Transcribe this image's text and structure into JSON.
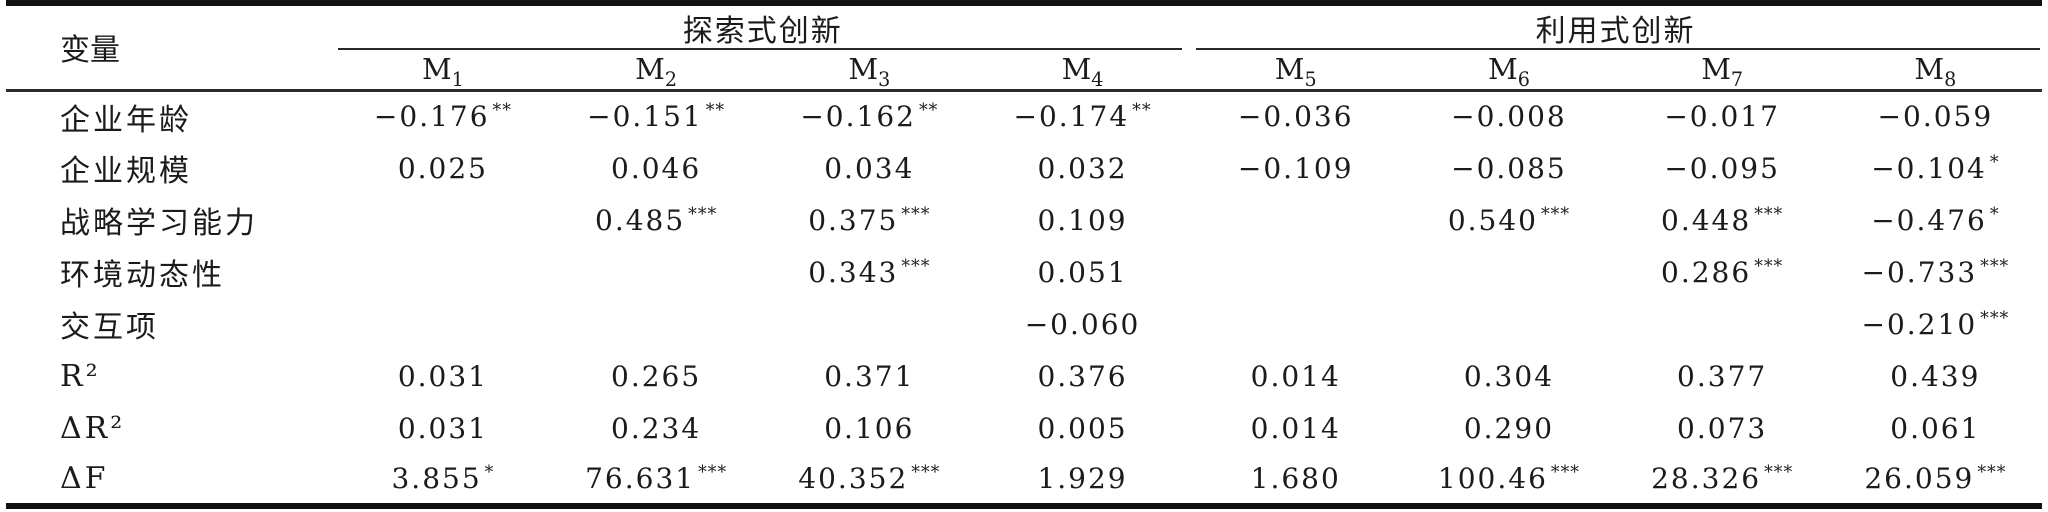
{
  "table": {
    "variable_header": "变量",
    "groups": [
      {
        "label": "探索式创新",
        "span": 4
      },
      {
        "label": "利用式创新",
        "span": 4
      }
    ],
    "models": [
      {
        "base": "M",
        "sub": "1"
      },
      {
        "base": "M",
        "sub": "2"
      },
      {
        "base": "M",
        "sub": "3"
      },
      {
        "base": "M",
        "sub": "4"
      },
      {
        "base": "M",
        "sub": "5"
      },
      {
        "base": "M",
        "sub": "6"
      },
      {
        "base": "M",
        "sub": "7"
      },
      {
        "base": "M",
        "sub": "8"
      }
    ],
    "rows": [
      {
        "label": "企业年龄",
        "cells": [
          "−0.176**",
          "−0.151**",
          "−0.162**",
          "−0.174**",
          "−0.036",
          "−0.008",
          "−0.017",
          "−0.059"
        ]
      },
      {
        "label": "企业规模",
        "cells": [
          "0.025",
          "0.046",
          "0.034",
          "0.032",
          "−0.109",
          "−0.085",
          "−0.095",
          "−0.104*"
        ]
      },
      {
        "label": "战略学习能力",
        "cells": [
          "",
          "0.485***",
          "0.375***",
          "0.109",
          "",
          "0.540***",
          "0.448***",
          "−0.476*"
        ]
      },
      {
        "label": "环境动态性",
        "cells": [
          "",
          "",
          "0.343***",
          "0.051",
          "",
          "",
          "0.286***",
          "−0.733***"
        ]
      },
      {
        "label": "交互项",
        "cells": [
          "",
          "",
          "",
          "−0.060",
          "",
          "",
          "",
          "−0.210***"
        ]
      },
      {
        "label": "R²",
        "cells": [
          "0.031",
          "0.265",
          "0.371",
          "0.376",
          "0.014",
          "0.304",
          "0.377",
          "0.439"
        ]
      },
      {
        "label": "ΔR²",
        "cells": [
          "0.031",
          "0.234",
          "0.106",
          "0.005",
          "0.014",
          "0.290",
          "0.073",
          "0.061"
        ]
      },
      {
        "label": "ΔF",
        "cells": [
          "3.855*",
          "76.631***",
          "40.352***",
          "1.929",
          "1.680",
          "100.46***",
          "28.326***",
          "26.059***"
        ]
      }
    ]
  }
}
